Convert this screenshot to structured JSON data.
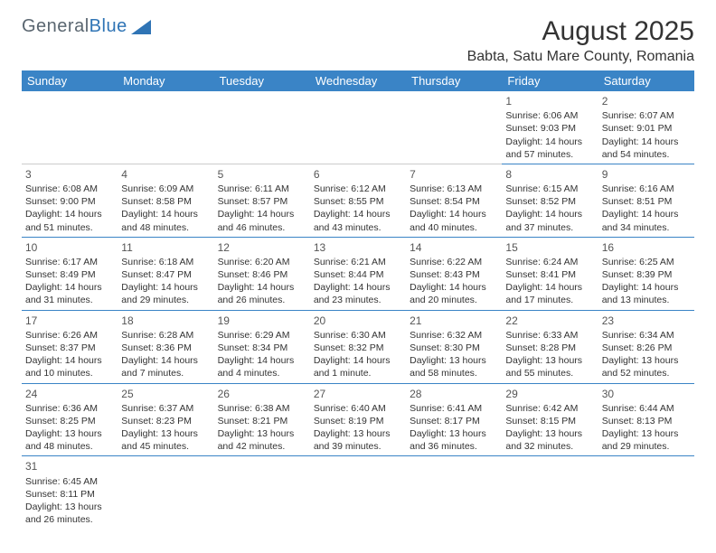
{
  "logo": {
    "text1": "General",
    "text2": "Blue"
  },
  "title": "August 2025",
  "location": "Babta, Satu Mare County, Romania",
  "colors": {
    "header_bg": "#3a84c6",
    "header_text": "#ffffff",
    "cell_border": "#3a84c6",
    "logo_gray": "#5a6670",
    "logo_blue": "#2f74b5",
    "text": "#333333"
  },
  "day_headers": [
    "Sunday",
    "Monday",
    "Tuesday",
    "Wednesday",
    "Thursday",
    "Friday",
    "Saturday"
  ],
  "weeks": [
    [
      {
        "blank": true
      },
      {
        "blank": true
      },
      {
        "blank": true
      },
      {
        "blank": true
      },
      {
        "blank": true
      },
      {
        "n": "1",
        "sr": "Sunrise: 6:06 AM",
        "ss": "Sunset: 9:03 PM",
        "dl1": "Daylight: 14 hours",
        "dl2": "and 57 minutes."
      },
      {
        "n": "2",
        "sr": "Sunrise: 6:07 AM",
        "ss": "Sunset: 9:01 PM",
        "dl1": "Daylight: 14 hours",
        "dl2": "and 54 minutes."
      }
    ],
    [
      {
        "n": "3",
        "sr": "Sunrise: 6:08 AM",
        "ss": "Sunset: 9:00 PM",
        "dl1": "Daylight: 14 hours",
        "dl2": "and 51 minutes."
      },
      {
        "n": "4",
        "sr": "Sunrise: 6:09 AM",
        "ss": "Sunset: 8:58 PM",
        "dl1": "Daylight: 14 hours",
        "dl2": "and 48 minutes."
      },
      {
        "n": "5",
        "sr": "Sunrise: 6:11 AM",
        "ss": "Sunset: 8:57 PM",
        "dl1": "Daylight: 14 hours",
        "dl2": "and 46 minutes."
      },
      {
        "n": "6",
        "sr": "Sunrise: 6:12 AM",
        "ss": "Sunset: 8:55 PM",
        "dl1": "Daylight: 14 hours",
        "dl2": "and 43 minutes."
      },
      {
        "n": "7",
        "sr": "Sunrise: 6:13 AM",
        "ss": "Sunset: 8:54 PM",
        "dl1": "Daylight: 14 hours",
        "dl2": "and 40 minutes."
      },
      {
        "n": "8",
        "sr": "Sunrise: 6:15 AM",
        "ss": "Sunset: 8:52 PM",
        "dl1": "Daylight: 14 hours",
        "dl2": "and 37 minutes."
      },
      {
        "n": "9",
        "sr": "Sunrise: 6:16 AM",
        "ss": "Sunset: 8:51 PM",
        "dl1": "Daylight: 14 hours",
        "dl2": "and 34 minutes."
      }
    ],
    [
      {
        "n": "10",
        "sr": "Sunrise: 6:17 AM",
        "ss": "Sunset: 8:49 PM",
        "dl1": "Daylight: 14 hours",
        "dl2": "and 31 minutes."
      },
      {
        "n": "11",
        "sr": "Sunrise: 6:18 AM",
        "ss": "Sunset: 8:47 PM",
        "dl1": "Daylight: 14 hours",
        "dl2": "and 29 minutes."
      },
      {
        "n": "12",
        "sr": "Sunrise: 6:20 AM",
        "ss": "Sunset: 8:46 PM",
        "dl1": "Daylight: 14 hours",
        "dl2": "and 26 minutes."
      },
      {
        "n": "13",
        "sr": "Sunrise: 6:21 AM",
        "ss": "Sunset: 8:44 PM",
        "dl1": "Daylight: 14 hours",
        "dl2": "and 23 minutes."
      },
      {
        "n": "14",
        "sr": "Sunrise: 6:22 AM",
        "ss": "Sunset: 8:43 PM",
        "dl1": "Daylight: 14 hours",
        "dl2": "and 20 minutes."
      },
      {
        "n": "15",
        "sr": "Sunrise: 6:24 AM",
        "ss": "Sunset: 8:41 PM",
        "dl1": "Daylight: 14 hours",
        "dl2": "and 17 minutes."
      },
      {
        "n": "16",
        "sr": "Sunrise: 6:25 AM",
        "ss": "Sunset: 8:39 PM",
        "dl1": "Daylight: 14 hours",
        "dl2": "and 13 minutes."
      }
    ],
    [
      {
        "n": "17",
        "sr": "Sunrise: 6:26 AM",
        "ss": "Sunset: 8:37 PM",
        "dl1": "Daylight: 14 hours",
        "dl2": "and 10 minutes."
      },
      {
        "n": "18",
        "sr": "Sunrise: 6:28 AM",
        "ss": "Sunset: 8:36 PM",
        "dl1": "Daylight: 14 hours",
        "dl2": "and 7 minutes."
      },
      {
        "n": "19",
        "sr": "Sunrise: 6:29 AM",
        "ss": "Sunset: 8:34 PM",
        "dl1": "Daylight: 14 hours",
        "dl2": "and 4 minutes."
      },
      {
        "n": "20",
        "sr": "Sunrise: 6:30 AM",
        "ss": "Sunset: 8:32 PM",
        "dl1": "Daylight: 14 hours",
        "dl2": "and 1 minute."
      },
      {
        "n": "21",
        "sr": "Sunrise: 6:32 AM",
        "ss": "Sunset: 8:30 PM",
        "dl1": "Daylight: 13 hours",
        "dl2": "and 58 minutes."
      },
      {
        "n": "22",
        "sr": "Sunrise: 6:33 AM",
        "ss": "Sunset: 8:28 PM",
        "dl1": "Daylight: 13 hours",
        "dl2": "and 55 minutes."
      },
      {
        "n": "23",
        "sr": "Sunrise: 6:34 AM",
        "ss": "Sunset: 8:26 PM",
        "dl1": "Daylight: 13 hours",
        "dl2": "and 52 minutes."
      }
    ],
    [
      {
        "n": "24",
        "sr": "Sunrise: 6:36 AM",
        "ss": "Sunset: 8:25 PM",
        "dl1": "Daylight: 13 hours",
        "dl2": "and 48 minutes."
      },
      {
        "n": "25",
        "sr": "Sunrise: 6:37 AM",
        "ss": "Sunset: 8:23 PM",
        "dl1": "Daylight: 13 hours",
        "dl2": "and 45 minutes."
      },
      {
        "n": "26",
        "sr": "Sunrise: 6:38 AM",
        "ss": "Sunset: 8:21 PM",
        "dl1": "Daylight: 13 hours",
        "dl2": "and 42 minutes."
      },
      {
        "n": "27",
        "sr": "Sunrise: 6:40 AM",
        "ss": "Sunset: 8:19 PM",
        "dl1": "Daylight: 13 hours",
        "dl2": "and 39 minutes."
      },
      {
        "n": "28",
        "sr": "Sunrise: 6:41 AM",
        "ss": "Sunset: 8:17 PM",
        "dl1": "Daylight: 13 hours",
        "dl2": "and 36 minutes."
      },
      {
        "n": "29",
        "sr": "Sunrise: 6:42 AM",
        "ss": "Sunset: 8:15 PM",
        "dl1": "Daylight: 13 hours",
        "dl2": "and 32 minutes."
      },
      {
        "n": "30",
        "sr": "Sunrise: 6:44 AM",
        "ss": "Sunset: 8:13 PM",
        "dl1": "Daylight: 13 hours",
        "dl2": "and 29 minutes."
      }
    ],
    [
      {
        "n": "31",
        "sr": "Sunrise: 6:45 AM",
        "ss": "Sunset: 8:11 PM",
        "dl1": "Daylight: 13 hours",
        "dl2": "and 26 minutes."
      },
      {
        "blank": true
      },
      {
        "blank": true
      },
      {
        "blank": true
      },
      {
        "blank": true
      },
      {
        "blank": true
      },
      {
        "blank": true
      }
    ]
  ]
}
